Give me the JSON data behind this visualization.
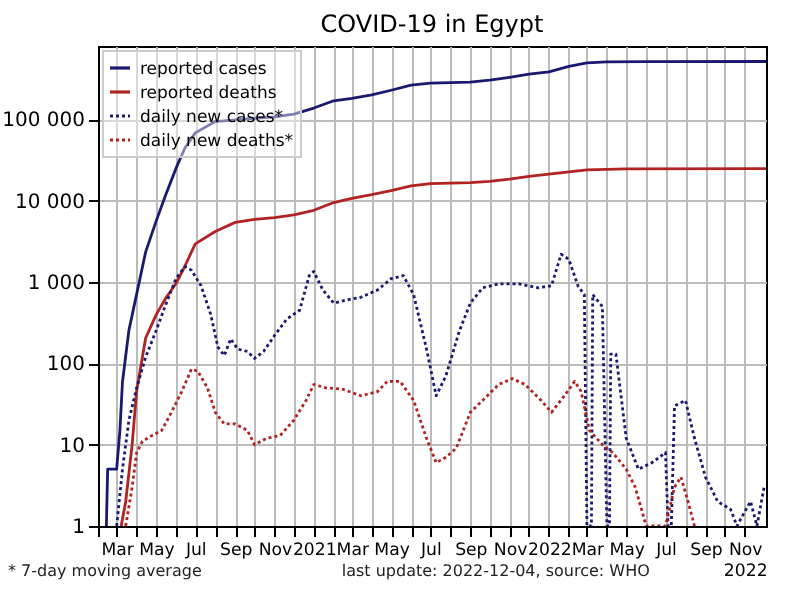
{
  "chart_data": {
    "type": "line",
    "title": "COVID-19 in Egypt",
    "annotations": [
      "* 7-day moving average",
      "last update: 2022-12-04, source: WHO"
    ],
    "log": "y",
    "grid": true,
    "legend": "top left",
    "xlim": [
      "2020-02-01",
      "2022-12-04"
    ],
    "xticks": [
      {
        "value": "2020-02-01",
        "label": null
      },
      {
        "value": "2020-03-01",
        "label": "Mar"
      },
      {
        "value": "2020-04-01",
        "label": null
      },
      {
        "value": "2020-05-01",
        "label": "May"
      },
      {
        "value": "2020-06-01",
        "label": null
      },
      {
        "value": "2020-07-01",
        "label": "Jul"
      },
      {
        "value": "2020-08-01",
        "label": null
      },
      {
        "value": "2020-09-01",
        "label": "Sep"
      },
      {
        "value": "2020-10-01",
        "label": null
      },
      {
        "value": "2020-11-01",
        "label": "Nov"
      },
      {
        "value": "2020-12-01",
        "label": null
      },
      {
        "value": "2021-01-01",
        "label": "2021"
      },
      {
        "value": "2021-02-01",
        "label": null
      },
      {
        "value": "2021-03-01",
        "label": "Mar"
      },
      {
        "value": "2021-04-01",
        "label": null
      },
      {
        "value": "2021-05-01",
        "label": "May"
      },
      {
        "value": "2021-06-01",
        "label": null
      },
      {
        "value": "2021-07-01",
        "label": "Jul"
      },
      {
        "value": "2021-08-01",
        "label": null
      },
      {
        "value": "2021-09-01",
        "label": "Sep"
      },
      {
        "value": "2021-10-01",
        "label": null
      },
      {
        "value": "2021-11-01",
        "label": "Nov"
      },
      {
        "value": "2021-12-01",
        "label": null
      },
      {
        "value": "2022-01-01",
        "label": "2022"
      },
      {
        "value": "2022-02-01",
        "label": null
      },
      {
        "value": "2022-03-01",
        "label": "Mar"
      },
      {
        "value": "2022-04-01",
        "label": null
      },
      {
        "value": "2022-05-01",
        "label": "May"
      },
      {
        "value": "2022-06-01",
        "label": null
      },
      {
        "value": "2022-07-01",
        "label": "Jul"
      },
      {
        "value": "2022-08-01",
        "label": null
      },
      {
        "value": "2022-09-01",
        "label": "Sep"
      },
      {
        "value": "2022-10-01",
        "label": null
      },
      {
        "value": "2022-11-01",
        "label": "Nov\n2022"
      }
    ],
    "ylim": [
      1,
      800000
    ],
    "yticks": [
      1,
      10,
      100,
      {
        "value": 1000,
        "label": "1 000"
      },
      {
        "value": 10000,
        "label": "10 000"
      },
      {
        "value": 100000,
        "label": "100 000"
      }
    ],
    "series": [
      {
        "name": "reported cases",
        "color": "#191970",
        "line_style": "solid",
        "x": [
          "2020-02-14",
          "2020-02-16",
          "2020-03-01",
          "2020-03-06",
          "2020-03-10",
          "2020-03-20",
          "2020-04-01",
          "2020-04-15",
          "2020-05-01",
          "2020-05-15",
          "2020-06-01",
          "2020-06-15",
          "2020-07-01",
          "2020-08-01",
          "2020-09-01",
          "2020-10-01",
          "2020-11-01",
          "2020-12-01",
          "2021-01-01",
          "2021-02-01",
          "2021-03-01",
          "2021-04-01",
          "2021-05-01",
          "2021-06-01",
          "2021-07-01",
          "2021-09-01",
          "2021-10-01",
          "2021-11-01",
          "2021-12-01",
          "2022-01-01",
          "2022-02-01",
          "2022-03-01",
          "2022-04-01",
          "2022-06-01",
          "2022-12-04"
        ],
        "values": [
          1,
          5,
          5,
          15,
          59,
          256,
          710,
          2350,
          5537,
          11228,
          24985,
          44598,
          68311,
          94078,
          98939,
          103387,
          107555,
          116303,
          138062,
          169640,
          181829,
          200000,
          228584,
          264000,
          280000,
          288000,
          305000,
          330000,
          360000,
          385000,
          450000,
          495000,
          510000,
          514000,
          515700
        ]
      },
      {
        "name": "reported deaths",
        "color": "#b22222",
        "line_style": "solid",
        "x": [
          "2020-03-08",
          "2020-03-15",
          "2020-03-25",
          "2020-04-01",
          "2020-04-15",
          "2020-05-01",
          "2020-05-15",
          "2020-06-01",
          "2020-06-15",
          "2020-07-01",
          "2020-08-01",
          "2020-09-01",
          "2020-10-01",
          "2020-11-01",
          "2020-12-01",
          "2021-01-01",
          "2021-02-01",
          "2021-03-01",
          "2021-04-01",
          "2021-05-01",
          "2021-06-01",
          "2021-07-01",
          "2021-09-01",
          "2021-10-01",
          "2021-11-01",
          "2021-12-01",
          "2022-01-01",
          "2022-02-01",
          "2022-03-01",
          "2022-05-01",
          "2022-12-04"
        ],
        "values": [
          1,
          2,
          10,
          46,
          205,
          392,
          612,
          959,
          1575,
          2953,
          4188,
          5421,
          5901,
          6199,
          6685,
          7631,
          9500,
          10700,
          11900,
          13300,
          15200,
          16200,
          16700,
          17300,
          18400,
          20000,
          21300,
          22700,
          24000,
          24600,
          24800
        ]
      },
      {
        "name": "daily new cases*",
        "color": "#191970",
        "line_style": "dotted",
        "x": [
          "2020-03-01",
          "2020-03-10",
          "2020-03-20",
          "2020-04-01",
          "2020-04-15",
          "2020-05-01",
          "2020-05-15",
          "2020-06-01",
          "2020-06-15",
          "2020-06-25",
          "2020-07-10",
          "2020-07-25",
          "2020-08-05",
          "2020-08-15",
          "2020-08-25",
          "2020-09-05",
          "2020-09-20",
          "2020-10-01",
          "2020-10-15",
          "2020-11-01",
          "2020-11-20",
          "2020-12-10",
          "2020-12-25",
          "2021-01-01",
          "2021-01-15",
          "2021-02-01",
          "2021-02-20",
          "2021-03-15",
          "2021-04-10",
          "2021-05-01",
          "2021-05-20",
          "2021-06-05",
          "2021-06-25",
          "2021-07-10",
          "2021-07-25",
          "2021-08-15",
          "2021-09-01",
          "2021-09-20",
          "2021-10-15",
          "2021-11-15",
          "2021-12-15",
          "2022-01-05",
          "2022-01-20",
          "2022-02-01",
          "2022-02-15",
          "2022-02-25",
          "2022-03-01",
          "2022-03-08",
          "2022-03-10",
          "2022-03-25",
          "2022-04-01",
          "2022-04-05",
          "2022-04-07",
          "2022-04-15",
          "2022-05-01",
          "2022-05-20",
          "2022-06-10",
          "2022-07-01",
          "2022-07-05",
          "2022-07-10",
          "2022-07-15",
          "2022-08-01",
          "2022-08-15",
          "2022-09-01",
          "2022-09-20",
          "2022-10-10",
          "2022-10-20",
          "2022-11-01",
          "2022-11-10",
          "2022-11-20",
          "2022-12-01"
        ],
        "values": [
          1,
          5,
          20,
          50,
          120,
          250,
          500,
          1100,
          1550,
          1400,
          900,
          400,
          160,
          125,
          200,
          150,
          140,
          115,
          140,
          220,
          350,
          450,
          1200,
          1350,
          800,
          550,
          600,
          650,
          800,
          1100,
          1200,
          700,
          150,
          40,
          70,
          250,
          550,
          850,
          950,
          950,
          850,
          900,
          2200,
          1900,
          900,
          700,
          1,
          1,
          700,
          500,
          1,
          1,
          130,
          130,
          12,
          5,
          6,
          8,
          1,
          1,
          30,
          35,
          12,
          4,
          2,
          1.6,
          1,
          1.5,
          2,
          1,
          3
        ]
      },
      {
        "name": "daily new deaths*",
        "color": "#b22222",
        "line_style": "dotted",
        "x": [
          "2020-03-15",
          "2020-03-25",
          "2020-04-01",
          "2020-04-10",
          "2020-04-25",
          "2020-05-10",
          "2020-05-25",
          "2020-06-10",
          "2020-06-25",
          "2020-07-05",
          "2020-07-20",
          "2020-08-01",
          "2020-08-15",
          "2020-09-01",
          "2020-09-20",
          "2020-10-01",
          "2020-10-20",
          "2020-11-10",
          "2020-12-01",
          "2020-12-20",
          "2021-01-01",
          "2021-01-20",
          "2021-02-15",
          "2021-03-15",
          "2021-04-10",
          "2021-04-25",
          "2021-05-15",
          "2021-06-05",
          "2021-06-25",
          "2021-07-10",
          "2021-07-25",
          "2021-08-10",
          "2021-09-01",
          "2021-09-20",
          "2021-10-15",
          "2021-11-05",
          "2021-11-25",
          "2021-12-20",
          "2022-01-05",
          "2022-01-25",
          "2022-02-10",
          "2022-02-20",
          "2022-03-05",
          "2022-03-25",
          "2022-04-10",
          "2022-05-01",
          "2022-05-15",
          "2022-06-01",
          "2022-07-01",
          "2022-07-15",
          "2022-07-25",
          "2022-08-05",
          "2022-08-15"
        ],
        "values": [
          1,
          3,
          8,
          11,
          13,
          15,
          25,
          45,
          85,
          80,
          50,
          25,
          18,
          18,
          15,
          10,
          12,
          13,
          20,
          35,
          55,
          50,
          48,
          40,
          45,
          60,
          60,
          35,
          12,
          6,
          7,
          9,
          25,
          35,
          55,
          65,
          55,
          35,
          25,
          40,
          60,
          45,
          15,
          10,
          8,
          5,
          3,
          1,
          1,
          3,
          4,
          2,
          1
        ]
      }
    ]
  }
}
